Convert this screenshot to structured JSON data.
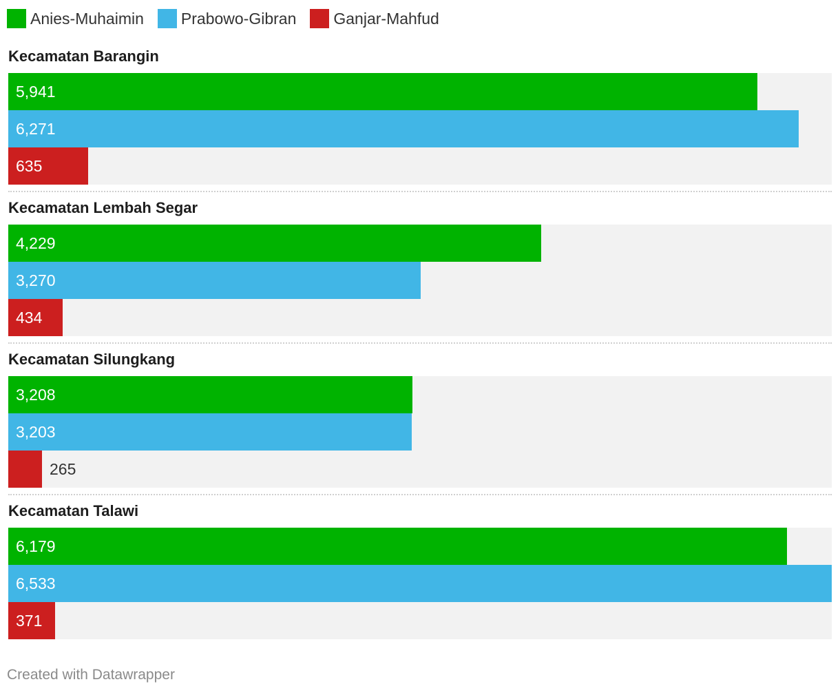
{
  "legend": [
    {
      "label": "Anies-Muhaimin",
      "color": "#00b300"
    },
    {
      "label": "Prabowo-Gibran",
      "color": "#41b6e6"
    },
    {
      "label": "Ganjar-Mahfud",
      "color": "#cc1f1f"
    }
  ],
  "chart_data": {
    "type": "bar",
    "orientation": "horizontal",
    "grouped": true,
    "title": "",
    "xlabel": "",
    "ylabel": "",
    "xlim": [
      0,
      6533
    ],
    "categories": [
      "Kecamatan Barangin",
      "Kecamatan Lembah Segar",
      "Kecamatan Silungkang",
      "Kecamatan Talawi"
    ],
    "series": [
      {
        "name": "Anies-Muhaimin",
        "color": "#00b300",
        "values": [
          5941,
          4229,
          3208,
          6179
        ],
        "labels": [
          "5,941",
          "4,229",
          "3,208",
          "6,179"
        ]
      },
      {
        "name": "Prabowo-Gibran",
        "color": "#41b6e6",
        "values": [
          6271,
          3270,
          3203,
          6533
        ],
        "labels": [
          "6,271",
          "3,270",
          "3,203",
          "6,533"
        ]
      },
      {
        "name": "Ganjar-Mahfud",
        "color": "#cc1f1f",
        "values": [
          635,
          434,
          265,
          371
        ],
        "labels": [
          "635",
          "434",
          "265",
          "371"
        ]
      }
    ],
    "legend_position": "top-left",
    "background_track_color": "#f2f2f2"
  },
  "footer": {
    "credit": "Created with Datawrapper"
  }
}
